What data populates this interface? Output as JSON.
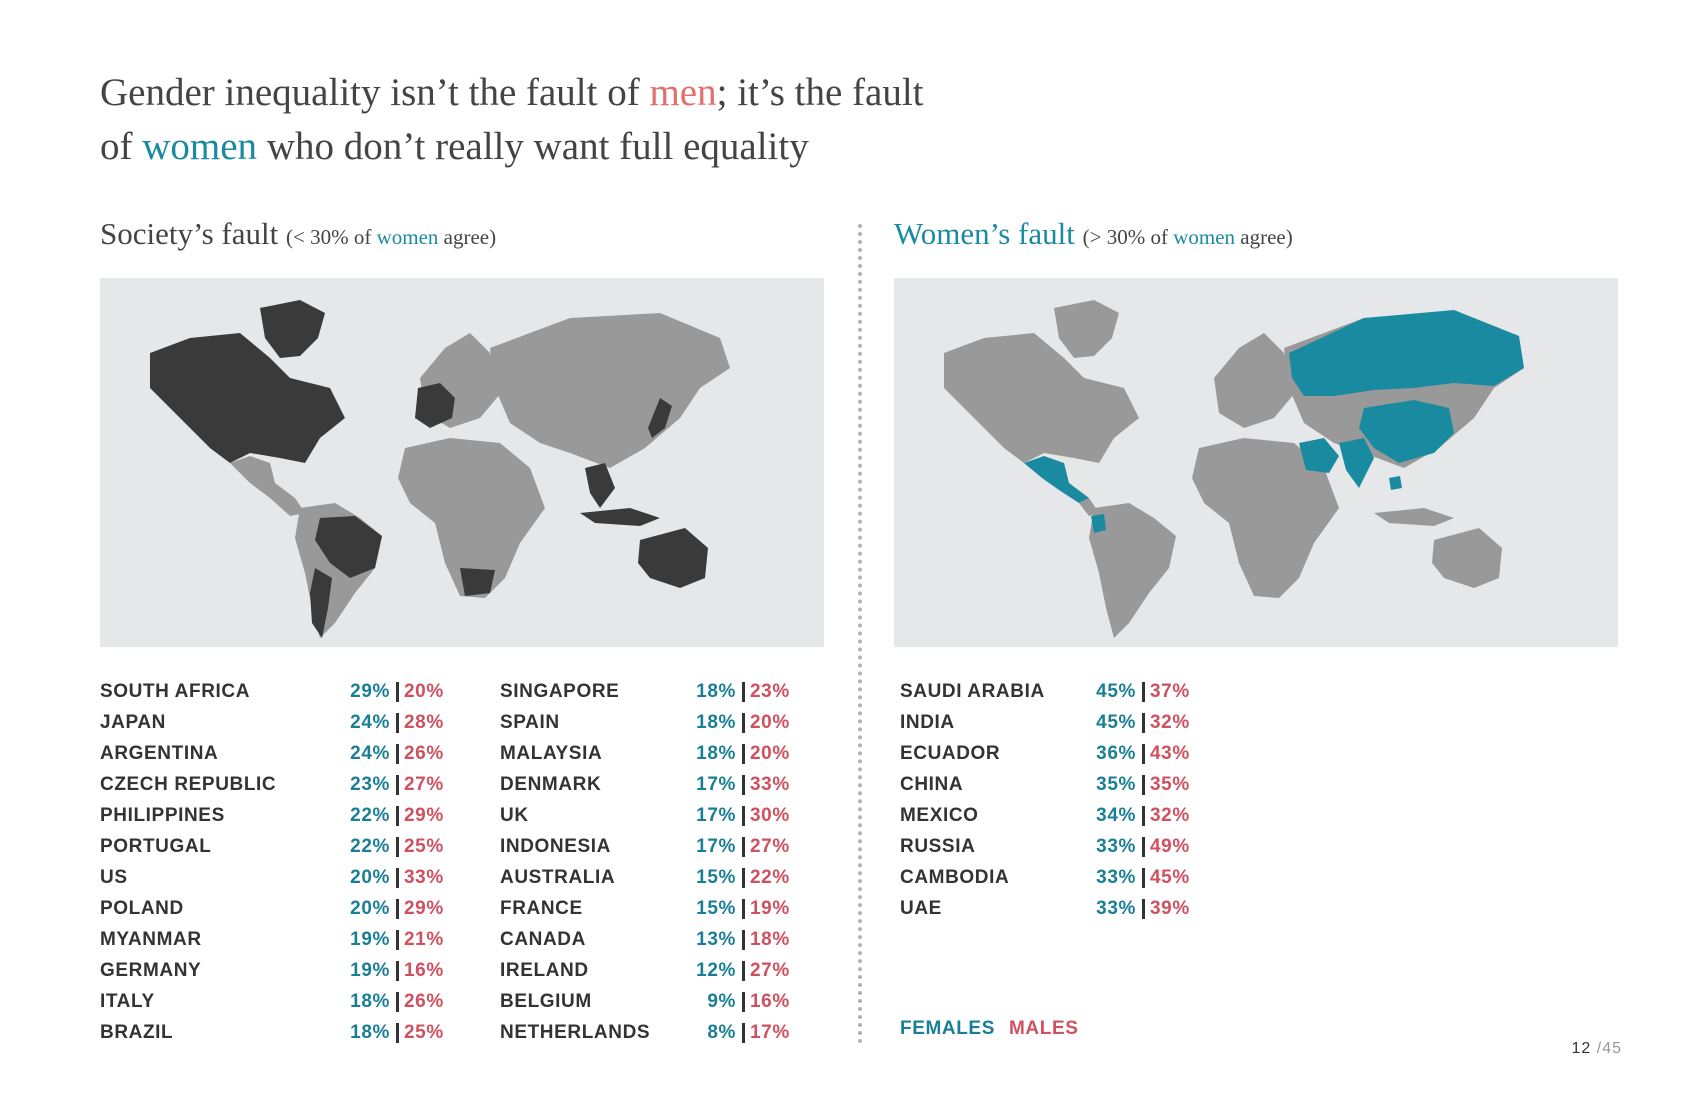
{
  "title": {
    "part1": "Gender inequality isn’t the fault of ",
    "men": "men",
    "part2": "; it’s the fault",
    "part3": "of ",
    "women": "women",
    "part4": " who don’t really want full equality"
  },
  "left_section": {
    "heading": "Society’s fault",
    "sub_open": "(< 30% of ",
    "sub_women": "women",
    "sub_close": " agree)",
    "table_a": [
      {
        "country": "SOUTH AFRICA",
        "female": "29%",
        "male": "20%"
      },
      {
        "country": "JAPAN",
        "female": "24%",
        "male": "28%"
      },
      {
        "country": "ARGENTINA",
        "female": "24%",
        "male": "26%"
      },
      {
        "country": "CZECH REPUBLIC",
        "female": "23%",
        "male": "27%"
      },
      {
        "country": "PHILIPPINES",
        "female": "22%",
        "male": "29%"
      },
      {
        "country": "PORTUGAL",
        "female": "22%",
        "male": "25%"
      },
      {
        "country": "US",
        "female": "20%",
        "male": "33%"
      },
      {
        "country": "POLAND",
        "female": "20%",
        "male": "29%"
      },
      {
        "country": "MYANMAR",
        "female": "19%",
        "male": "21%"
      },
      {
        "country": "GERMANY",
        "female": "19%",
        "male": "16%"
      },
      {
        "country": "ITALY",
        "female": "18%",
        "male": "26%"
      },
      {
        "country": "BRAZIL",
        "female": "18%",
        "male": "25%"
      }
    ],
    "table_b": [
      {
        "country": "SINGAPORE",
        "female": "18%",
        "male": "23%"
      },
      {
        "country": "SPAIN",
        "female": "18%",
        "male": "20%"
      },
      {
        "country": "MALAYSIA",
        "female": "18%",
        "male": "20%"
      },
      {
        "country": "DENMARK",
        "female": "17%",
        "male": "33%"
      },
      {
        "country": "UK",
        "female": "17%",
        "male": "30%"
      },
      {
        "country": "INDONESIA",
        "female": "17%",
        "male": "27%"
      },
      {
        "country": "AUSTRALIA",
        "female": "15%",
        "male": "22%"
      },
      {
        "country": "FRANCE",
        "female": "15%",
        "male": "19%"
      },
      {
        "country": "CANADA",
        "female": "13%",
        "male": "18%"
      },
      {
        "country": "IRELAND",
        "female": "12%",
        "male": "27%"
      },
      {
        "country": "BELGIUM",
        "female": "9%",
        "male": "16%"
      },
      {
        "country": "NETHERLANDS",
        "female": "8%",
        "male": "17%"
      }
    ]
  },
  "right_section": {
    "heading": "Women’s fault",
    "sub_open": "(> 30% of ",
    "sub_women": "women",
    "sub_close": " agree)",
    "table": [
      {
        "country": "SAUDI ARABIA",
        "female": "45%",
        "male": "37%"
      },
      {
        "country": "INDIA",
        "female": "45%",
        "male": "32%"
      },
      {
        "country": "ECUADOR",
        "female": "36%",
        "male": "43%"
      },
      {
        "country": "CHINA",
        "female": "35%",
        "male": "35%"
      },
      {
        "country": "MEXICO",
        "female": "34%",
        "male": "32%"
      },
      {
        "country": "RUSSIA",
        "female": "33%",
        "male": "49%"
      },
      {
        "country": "CAMBODIA",
        "female": "33%",
        "male": "45%"
      },
      {
        "country": "UAE",
        "female": "33%",
        "male": "39%"
      }
    ]
  },
  "legend": {
    "females": "FEMALES",
    "males": "MALES"
  },
  "page": {
    "current": "12",
    "total": "/45"
  },
  "colors": {
    "teal": "#1a8aa0",
    "red": "#d05060",
    "dark": "#333333",
    "grey_land": "#999999",
    "map_bg": "#e6e7e8"
  }
}
